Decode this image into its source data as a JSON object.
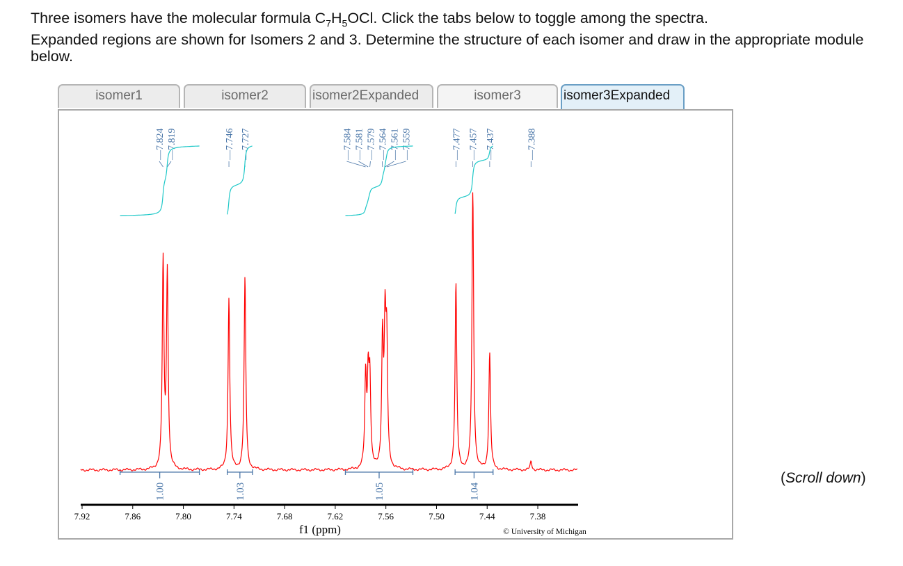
{
  "question": {
    "line1_a": "Three isomers have the molecular formula C",
    "sub1": "7",
    "line1_b": "H",
    "sub2": "5",
    "line1_c": "OCl. Click the tabs below to toggle among the spectra.",
    "line2": "Expanded regions are shown for Isomers 2 and 3. Determine the structure of each isomer and draw in the appropriate module below."
  },
  "tabs": [
    {
      "label": "isomer1",
      "active": false
    },
    {
      "label": "isomer2",
      "active": false
    },
    {
      "label": "isomer2Expanded",
      "active": false
    },
    {
      "label": "isomer3",
      "active": false
    },
    {
      "label": "isomer3Expanded",
      "active": true
    }
  ],
  "scroll_hint": {
    "open": "(",
    "text": "Scroll down",
    "close": ")"
  },
  "chart_data": {
    "type": "line",
    "xlabel": "f1 (ppm)",
    "xlim": [
      7.92,
      7.333
    ],
    "x_reversed": true,
    "xticks": [
      "7.92",
      "7.86",
      "7.80",
      "7.74",
      "7.68",
      "7.62",
      "7.56",
      "7.50",
      "7.44",
      "7.38"
    ],
    "copyright": "© University of Michigan",
    "colors": {
      "spectrum": "#ff0000",
      "integral_curve": "#1ec8c8",
      "labels": "#4a76a8",
      "axis": "#000000"
    },
    "peak_labels": [
      "7.824",
      "7.819",
      "7.746",
      "7.727",
      "7.584",
      "7.581",
      "7.579",
      "7.564",
      "7.561",
      "7.559",
      "7.477",
      "7.457",
      "7.437",
      "7.388"
    ],
    "peaks": [
      {
        "ppm": 7.824,
        "intensity": 0.74
      },
      {
        "ppm": 7.819,
        "intensity": 0.7
      },
      {
        "ppm": 7.746,
        "intensity": 0.62
      },
      {
        "ppm": 7.727,
        "intensity": 0.69
      },
      {
        "ppm": 7.584,
        "intensity": 0.32
      },
      {
        "ppm": 7.581,
        "intensity": 0.3
      },
      {
        "ppm": 7.579,
        "intensity": 0.3
      },
      {
        "ppm": 7.564,
        "intensity": 0.45
      },
      {
        "ppm": 7.561,
        "intensity": 0.47
      },
      {
        "ppm": 7.559,
        "intensity": 0.42
      },
      {
        "ppm": 7.477,
        "intensity": 0.67
      },
      {
        "ppm": 7.457,
        "intensity": 1.0
      },
      {
        "ppm": 7.437,
        "intensity": 0.42
      },
      {
        "ppm": 7.388,
        "intensity": 0.03
      }
    ],
    "integrals": [
      {
        "from": 7.875,
        "to": 7.781,
        "value": "1.00"
      },
      {
        "from": 7.748,
        "to": 7.718,
        "value": "1.03"
      },
      {
        "from": 7.608,
        "to": 7.528,
        "value": "1.05"
      },
      {
        "from": 7.478,
        "to": 7.433,
        "value": "1.04"
      }
    ]
  }
}
